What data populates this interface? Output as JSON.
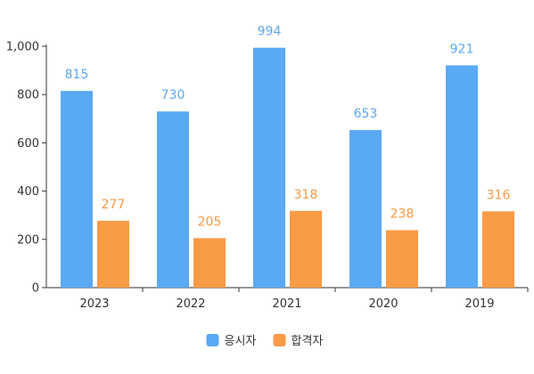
{
  "chart_data": {
    "type": "bar",
    "title": "",
    "xlabel": "",
    "ylabel": "",
    "categories": [
      "2023",
      "2022",
      "2021",
      "2020",
      "2019"
    ],
    "series": [
      {
        "name": "응시자",
        "color": "#5aa9f5",
        "values": [
          815,
          730,
          994,
          653,
          921
        ]
      },
      {
        "name": "합격자",
        "color": "#f99a45",
        "values": [
          277,
          205,
          318,
          238,
          316
        ]
      }
    ],
    "ylim": [
      0,
      1000
    ],
    "yticks": [
      "0",
      "200",
      "400",
      "600",
      "800",
      "1,000"
    ],
    "ytick_values": [
      0,
      200,
      400,
      600,
      800,
      1000
    ],
    "grid": false,
    "data_labels": true,
    "legend_position": "bottom-center"
  }
}
